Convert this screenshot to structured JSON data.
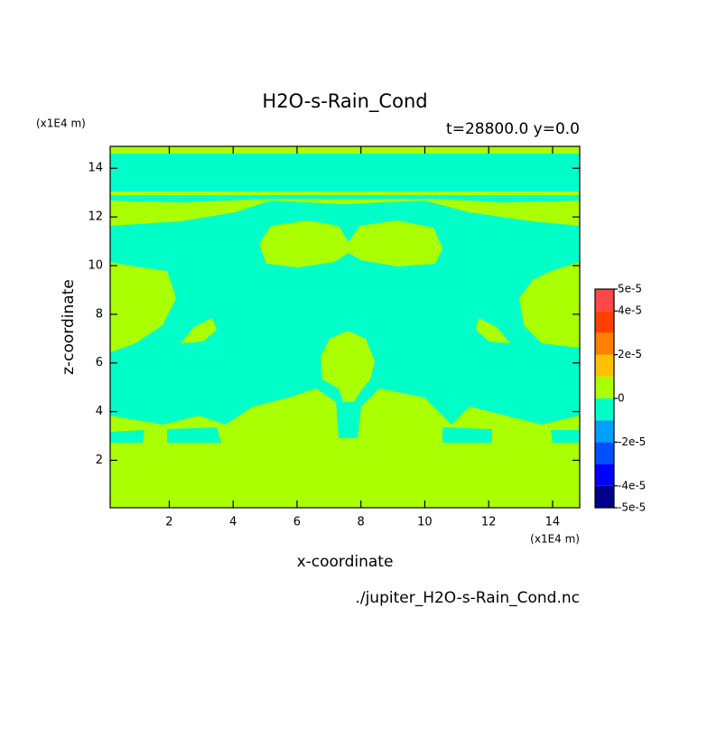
{
  "chart_data": {
    "type": "contour",
    "title": "H2O-s-Rain_Cond",
    "subtitle": "t=28800.0 y=0.0",
    "xlabel": "x-coordinate",
    "ylabel": "z-coordinate",
    "xunit": "(x1E4 m)",
    "yunit": "(x1E4 m)",
    "filename": "./jupiter_H2O-s-Rain_Cond.nc",
    "xlim": [
      0.15,
      14.85
    ],
    "ylim": [
      0.05,
      14.9
    ],
    "xticks": [
      2,
      4,
      6,
      8,
      10,
      12,
      14
    ],
    "yticks": [
      2,
      4,
      6,
      8,
      10,
      12,
      14
    ],
    "colorbar": {
      "levels": [
        -5e-05,
        -4e-05,
        -3e-05,
        -2e-05,
        -1e-05,
        0,
        1e-05,
        2e-05,
        3e-05,
        4e-05,
        5e-05
      ],
      "colors": [
        "#00008c",
        "#0000ff",
        "#0050ff",
        "#00a0ff",
        "#00ffc8",
        "#aaff00",
        "#ffc000",
        "#ff8000",
        "#ff4000",
        "#ff4848"
      ],
      "ticks": [
        {
          "value": -5e-05,
          "label": "-5e-5"
        },
        {
          "value": -4e-05,
          "label": "-4e-5"
        },
        {
          "value": -2e-05,
          "label": "-2e-5"
        },
        0,
        {
          "value": 2e-05,
          "label": "2e-5"
        },
        {
          "value": 4e-05,
          "label": "4e-5"
        },
        {
          "value": 5e-05,
          "label": "5e-5"
        }
      ]
    }
  }
}
